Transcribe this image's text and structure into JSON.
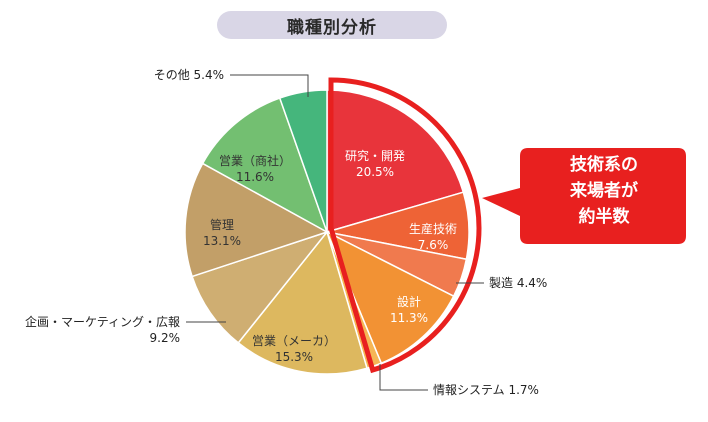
{
  "chart_data": {
    "type": "pie",
    "title": "職種別分析",
    "unit": "%",
    "slices": [
      {
        "label": "研究・開発",
        "value": 20.5,
        "color": "#e8343b"
      },
      {
        "label": "生産技術",
        "value": 7.6,
        "color": "#ee6336"
      },
      {
        "label": "製造",
        "value": 4.4,
        "color": "#f07a4e"
      },
      {
        "label": "設計",
        "value": 11.3,
        "color": "#f29234"
      },
      {
        "label": "情報システム",
        "value": 1.7,
        "color": "#f6b655"
      },
      {
        "label": "営業（メーカ）",
        "value": 15.3,
        "color": "#ddb85f"
      },
      {
        "label": "企画・マーケティング・広報",
        "value": 9.2,
        "color": "#cfae72"
      },
      {
        "label": "管理",
        "value": 13.1,
        "color": "#c29f68"
      },
      {
        "label": "営業（商社）",
        "value": 11.6,
        "color": "#73bf71"
      },
      {
        "label": "その他",
        "value": 5.4,
        "color": "#45b67c"
      }
    ],
    "highlight": {
      "slices": [
        "研究・開発",
        "生産技術",
        "製造",
        "設計",
        "情報システム"
      ],
      "color": "#e8201f"
    }
  },
  "callout": {
    "lines": [
      "技術系の",
      "来場者が",
      "約半数"
    ],
    "color": "#e8201f"
  }
}
